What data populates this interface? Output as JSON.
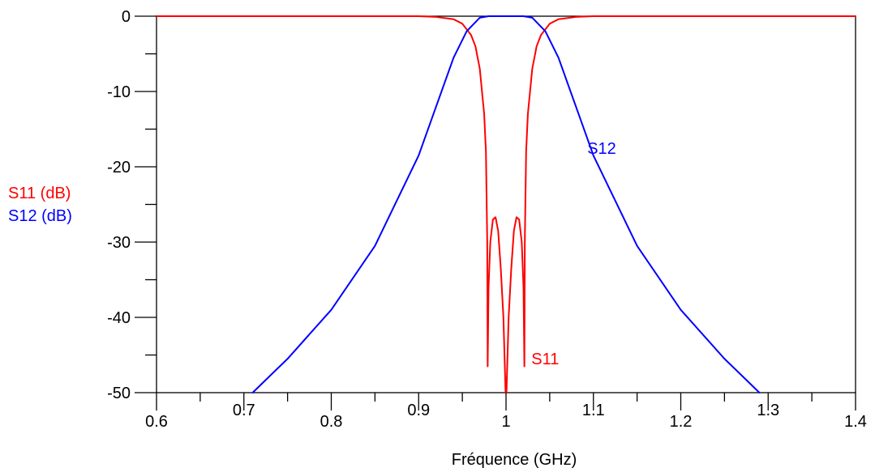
{
  "chart_data": {
    "type": "line",
    "xlabel": "Fréquence (GHz)",
    "ylabels": [
      {
        "text": "S11 (dB)",
        "color": "#ff0000"
      },
      {
        "text": "S12 (dB)",
        "color": "#0000ff"
      }
    ],
    "xlim": [
      0.6,
      1.4
    ],
    "ylim": [
      -50,
      0
    ],
    "x_ticks": [
      0.6,
      0.7,
      0.8,
      0.9,
      1,
      1.1,
      1.2,
      1.3,
      1.4
    ],
    "x_tick_labels": [
      "0.6",
      "0.7",
      "0.8",
      "0.9",
      "1",
      "1.1",
      "1.2",
      "1.3",
      "1.4"
    ],
    "y_ticks": [
      0,
      -10,
      -20,
      -30,
      -40,
      -50
    ],
    "y_tick_labels": [
      "0",
      "-10",
      "-20",
      "-30",
      "-40",
      "-50"
    ],
    "grid": false,
    "series": [
      {
        "name": "S11",
        "color": "#ff0000",
        "points": [
          [
            0.6,
            0
          ],
          [
            0.9,
            0
          ],
          [
            0.92,
            -0.1
          ],
          [
            0.94,
            -0.4
          ],
          [
            0.95,
            -1.0
          ],
          [
            0.96,
            -2.5
          ],
          [
            0.965,
            -4.0
          ],
          [
            0.97,
            -7.0
          ],
          [
            0.975,
            -13.0
          ],
          [
            0.977,
            -18.0
          ],
          [
            0.9785,
            -30.0
          ],
          [
            0.979,
            -46.5
          ],
          [
            0.98,
            -36.0
          ],
          [
            0.982,
            -30.0
          ],
          [
            0.985,
            -27.0
          ],
          [
            0.988,
            -26.7
          ],
          [
            0.991,
            -28.5
          ],
          [
            0.994,
            -33.5
          ],
          [
            0.997,
            -40.0
          ],
          [
            0.9995,
            -50.0
          ],
          [
            1.0005,
            -50.0
          ],
          [
            1.003,
            -40.0
          ],
          [
            1.006,
            -33.5
          ],
          [
            1.009,
            -28.5
          ],
          [
            1.012,
            -26.7
          ],
          [
            1.015,
            -27.0
          ],
          [
            1.018,
            -30.0
          ],
          [
            1.02,
            -36.0
          ],
          [
            1.021,
            -46.5
          ],
          [
            1.0215,
            -30.0
          ],
          [
            1.023,
            -18.0
          ],
          [
            1.025,
            -13.0
          ],
          [
            1.03,
            -7.0
          ],
          [
            1.035,
            -4.0
          ],
          [
            1.04,
            -2.5
          ],
          [
            1.05,
            -1.0
          ],
          [
            1.06,
            -0.4
          ],
          [
            1.08,
            -0.1
          ],
          [
            1.1,
            0
          ],
          [
            1.4,
            0
          ]
        ]
      },
      {
        "name": "S12",
        "color": "#0000ff",
        "points": [
          [
            0.71,
            -50.0
          ],
          [
            0.75,
            -45.5
          ],
          [
            0.8,
            -39.0
          ],
          [
            0.85,
            -30.5
          ],
          [
            0.9,
            -18.5
          ],
          [
            0.92,
            -12.0
          ],
          [
            0.94,
            -5.5
          ],
          [
            0.955,
            -2.0
          ],
          [
            0.97,
            -0.2
          ],
          [
            0.98,
            0
          ],
          [
            1.02,
            0
          ],
          [
            1.03,
            -0.2
          ],
          [
            1.045,
            -2.0
          ],
          [
            1.06,
            -5.5
          ],
          [
            1.08,
            -12.0
          ],
          [
            1.1,
            -18.5
          ],
          [
            1.15,
            -30.5
          ],
          [
            1.2,
            -39.0
          ],
          [
            1.25,
            -45.5
          ],
          [
            1.29,
            -50.0
          ]
        ]
      }
    ],
    "annotations": [
      {
        "text": "S12",
        "x": 1.093,
        "y": -17.5,
        "color": "#0000ff"
      },
      {
        "text": "S11",
        "x": 1.029,
        "y": -45.5,
        "color": "#ff0000"
      }
    ]
  }
}
